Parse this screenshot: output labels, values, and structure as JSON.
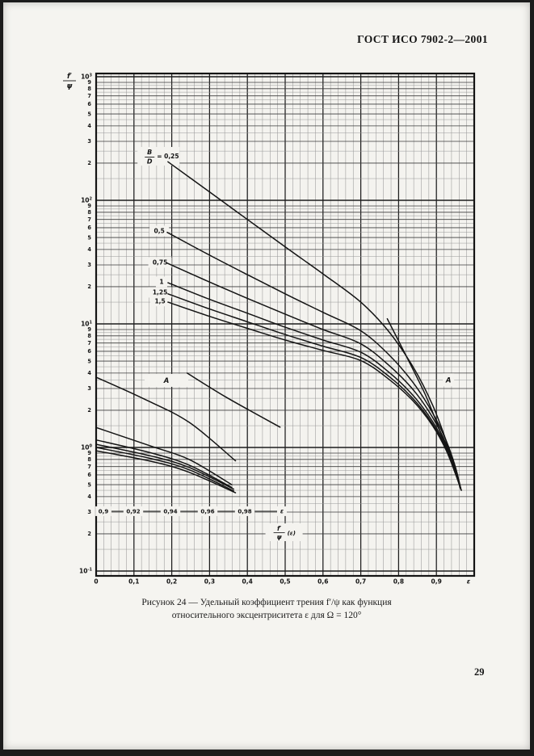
{
  "page": {
    "header": "ГОСТ ИСО 7902-2—2001",
    "caption_line1": "Рисунок 24 — Удельный коэффициент трения f′/ψ как функция",
    "caption_line2": "относительного эксцентриситета ε для Ω = 120°",
    "page_number": "29"
  },
  "colors": {
    "ink": "#141414",
    "paper": "#f5f4f0",
    "plot_bg": "#f4f3ef",
    "grid_fine": "#989898",
    "grid_mid": "#3c3c3c",
    "grid_major": "#1d1d1d"
  },
  "chart_data": {
    "type": "line",
    "title": "Рисунок 24 — Удельный коэффициент трения f′/ψ как функция относительного эксцентриситета ε для Ω = 120°",
    "xlabel": "ε",
    "ylabel": "f′/ψ",
    "x_axis": {
      "min": 0,
      "max": 1.0,
      "ticks": [
        [
          "0",
          0
        ],
        [
          "0,1",
          0.1
        ],
        [
          "0,2",
          0.2
        ],
        [
          "0,3",
          0.3
        ],
        [
          "0,4",
          0.4
        ],
        [
          "0,5",
          0.5
        ],
        [
          "0,6",
          0.6
        ],
        [
          "0,7",
          0.7
        ],
        [
          "0,8",
          0.8
        ],
        [
          "0,9",
          0.9
        ]
      ],
      "end_label": "ε",
      "end_label_pos": 0.985
    },
    "y_axis": {
      "scale": "log",
      "min": 0.1,
      "max": 1000,
      "decades": [
        {
          "base": "10",
          "exp": "3",
          "value": 1000
        },
        {
          "base": "10",
          "exp": "2",
          "value": 100
        },
        {
          "base": "10",
          "exp": "1",
          "value": 10
        },
        {
          "base": "10",
          "exp": "0",
          "value": 1
        },
        {
          "base": "10",
          "exp": "-1",
          "value": 0.1
        }
      ],
      "minor_labels": [
        "9",
        "8",
        "7",
        "6",
        "5",
        "4",
        "3",
        "2"
      ],
      "minor_decades": [
        2,
        1,
        0,
        -1
      ],
      "grid_minor_steps": [
        1.5,
        2,
        2.5,
        3,
        3.5,
        4,
        4.5,
        5,
        5.5,
        6,
        6.5,
        7,
        7.5,
        8,
        8.5,
        9
      ]
    },
    "bd_label": {
      "top": "B",
      "bottom": "D",
      "eq": "= 0,25",
      "e": 0.165,
      "v": 229
    },
    "annotations": [
      {
        "text": "0,5",
        "e": 0.167,
        "v": 56.5
      },
      {
        "text": "0,75",
        "e": 0.169,
        "v": 31.4
      },
      {
        "text": "1",
        "e": 0.173,
        "v": 21.9
      },
      {
        "text": "1,25",
        "e": 0.169,
        "v": 18.0
      },
      {
        "text": "1,5",
        "e": 0.169,
        "v": 15.3
      },
      {
        "text": "A",
        "e": 0.186,
        "v": 3.49,
        "boxw": 54,
        "italic": true,
        "big": true
      },
      {
        "text": "A",
        "e": 0.932,
        "v": 3.52,
        "italic": true,
        "big": true
      }
    ],
    "series": [
      {
        "name": "B/D = 0,25",
        "scale": "main",
        "points": [
          [
            0.19,
            205
          ],
          [
            0.3,
            117
          ],
          [
            0.4,
            70
          ],
          [
            0.5,
            42
          ],
          [
            0.6,
            25.4
          ],
          [
            0.7,
            15.0
          ],
          [
            0.775,
            8.6
          ],
          [
            0.84,
            4.4
          ],
          [
            0.89,
            2.2
          ],
          [
            0.925,
            1.15
          ],
          [
            0.95,
            0.65
          ],
          [
            0.963,
            0.47
          ]
        ]
      },
      {
        "name": "B/D = 0,5",
        "scale": "main",
        "points": [
          [
            0.188,
            55
          ],
          [
            0.3,
            36
          ],
          [
            0.4,
            25
          ],
          [
            0.5,
            17.5
          ],
          [
            0.6,
            12.4
          ],
          [
            0.7,
            8.8
          ],
          [
            0.775,
            5.6
          ],
          [
            0.84,
            3.3
          ],
          [
            0.89,
            1.9
          ],
          [
            0.925,
            1.15
          ],
          [
            0.95,
            0.7
          ],
          [
            0.964,
            0.47
          ]
        ]
      },
      {
        "name": "B/D = 0,75",
        "scale": "main",
        "points": [
          [
            0.188,
            31
          ],
          [
            0.3,
            21.8
          ],
          [
            0.4,
            16.1
          ],
          [
            0.5,
            12.0
          ],
          [
            0.6,
            9.0
          ],
          [
            0.7,
            6.9
          ],
          [
            0.775,
            4.6
          ],
          [
            0.84,
            2.9
          ],
          [
            0.89,
            1.75
          ],
          [
            0.925,
            1.08
          ],
          [
            0.95,
            0.67
          ],
          [
            0.964,
            0.466
          ]
        ]
      },
      {
        "name": "B/D = 1",
        "scale": "main",
        "points": [
          [
            0.19,
            21.5
          ],
          [
            0.3,
            15.8
          ],
          [
            0.4,
            12.2
          ],
          [
            0.5,
            9.4
          ],
          [
            0.6,
            7.4
          ],
          [
            0.7,
            5.9
          ],
          [
            0.775,
            4.05
          ],
          [
            0.84,
            2.6
          ],
          [
            0.89,
            1.62
          ],
          [
            0.925,
            1.03
          ],
          [
            0.95,
            0.645
          ],
          [
            0.964,
            0.462
          ]
        ]
      },
      {
        "name": "B/D = 1,25",
        "scale": "main",
        "points": [
          [
            0.19,
            17.5
          ],
          [
            0.3,
            13.2
          ],
          [
            0.4,
            10.4
          ],
          [
            0.5,
            8.2
          ],
          [
            0.6,
            6.6
          ],
          [
            0.7,
            5.35
          ],
          [
            0.775,
            3.75
          ],
          [
            0.84,
            2.45
          ],
          [
            0.89,
            1.55
          ],
          [
            0.925,
            0.99
          ],
          [
            0.95,
            0.63
          ],
          [
            0.965,
            0.458
          ]
        ]
      },
      {
        "name": "B/D = 1,5",
        "scale": "main",
        "points": [
          [
            0.19,
            15
          ],
          [
            0.3,
            11.5
          ],
          [
            0.4,
            9.2
          ],
          [
            0.5,
            7.4
          ],
          [
            0.6,
            6.1
          ],
          [
            0.7,
            5.05
          ],
          [
            0.775,
            3.55
          ],
          [
            0.84,
            2.35
          ],
          [
            0.89,
            1.5
          ],
          [
            0.925,
            0.96
          ],
          [
            0.95,
            0.615
          ],
          [
            0.965,
            0.455
          ]
        ]
      },
      {
        "name": "A",
        "scale": "main",
        "points": [
          [
            0.77,
            11
          ],
          [
            0.82,
            5.5
          ],
          [
            0.87,
            2.7
          ],
          [
            0.91,
            1.35
          ],
          [
            0.94,
            0.78
          ],
          [
            0.957,
            0.55
          ],
          [
            0.966,
            0.45
          ]
        ]
      }
    ],
    "inset": {
      "description": "magnified eccentricity scale 0,9–0,98 (curves A)",
      "scale_labels": [
        [
          "0,9",
          0.9
        ],
        [
          "0,92",
          0.92
        ],
        [
          "0,94",
          0.94
        ],
        [
          "0,96",
          0.96
        ],
        [
          "0,98",
          0.98
        ]
      ],
      "end_label": "ε",
      "end_label_pos": 1.0,
      "bar_value": 0.305,
      "caption_top": "f′",
      "caption_bottom": "ψ",
      "caption_arg": "(ε)",
      "caption_e": 0.497,
      "caption_v": 0.206,
      "series": [
        {
          "name": "A-1",
          "points": [
            [
              0.9,
              3.7
            ],
            [
              0.925,
              2.5
            ],
            [
              0.95,
              1.6
            ],
            [
              0.975,
              0.78
            ]
          ]
        },
        {
          "name": "A-2",
          "points": [
            [
              0.949,
              4.0
            ],
            [
              0.97,
              2.55
            ],
            [
              0.999,
              1.46
            ]
          ]
        },
        {
          "name": "A-3",
          "points": [
            [
              0.9,
              1.45
            ],
            [
              0.93,
              1.02
            ],
            [
              0.95,
              0.8
            ],
            [
              0.973,
              0.5
            ]
          ]
        },
        {
          "name": "A-4",
          "points": [
            [
              0.9,
              1.15
            ],
            [
              0.93,
              0.9
            ],
            [
              0.95,
              0.72
            ],
            [
              0.973,
              0.475
            ]
          ]
        },
        {
          "name": "A-5",
          "points": [
            [
              0.9,
              1.06
            ],
            [
              0.93,
              0.85
            ],
            [
              0.95,
              0.69
            ],
            [
              0.974,
              0.46
            ]
          ]
        },
        {
          "name": "A-6",
          "points": [
            [
              0.9,
              1.0
            ],
            [
              0.93,
              0.81
            ],
            [
              0.95,
              0.66
            ],
            [
              0.974,
              0.445
            ]
          ]
        },
        {
          "name": "A-7",
          "points": [
            [
              0.9,
              0.94
            ],
            [
              0.93,
              0.77
            ],
            [
              0.95,
              0.63
            ],
            [
              0.975,
              0.43
            ]
          ]
        }
      ]
    }
  }
}
